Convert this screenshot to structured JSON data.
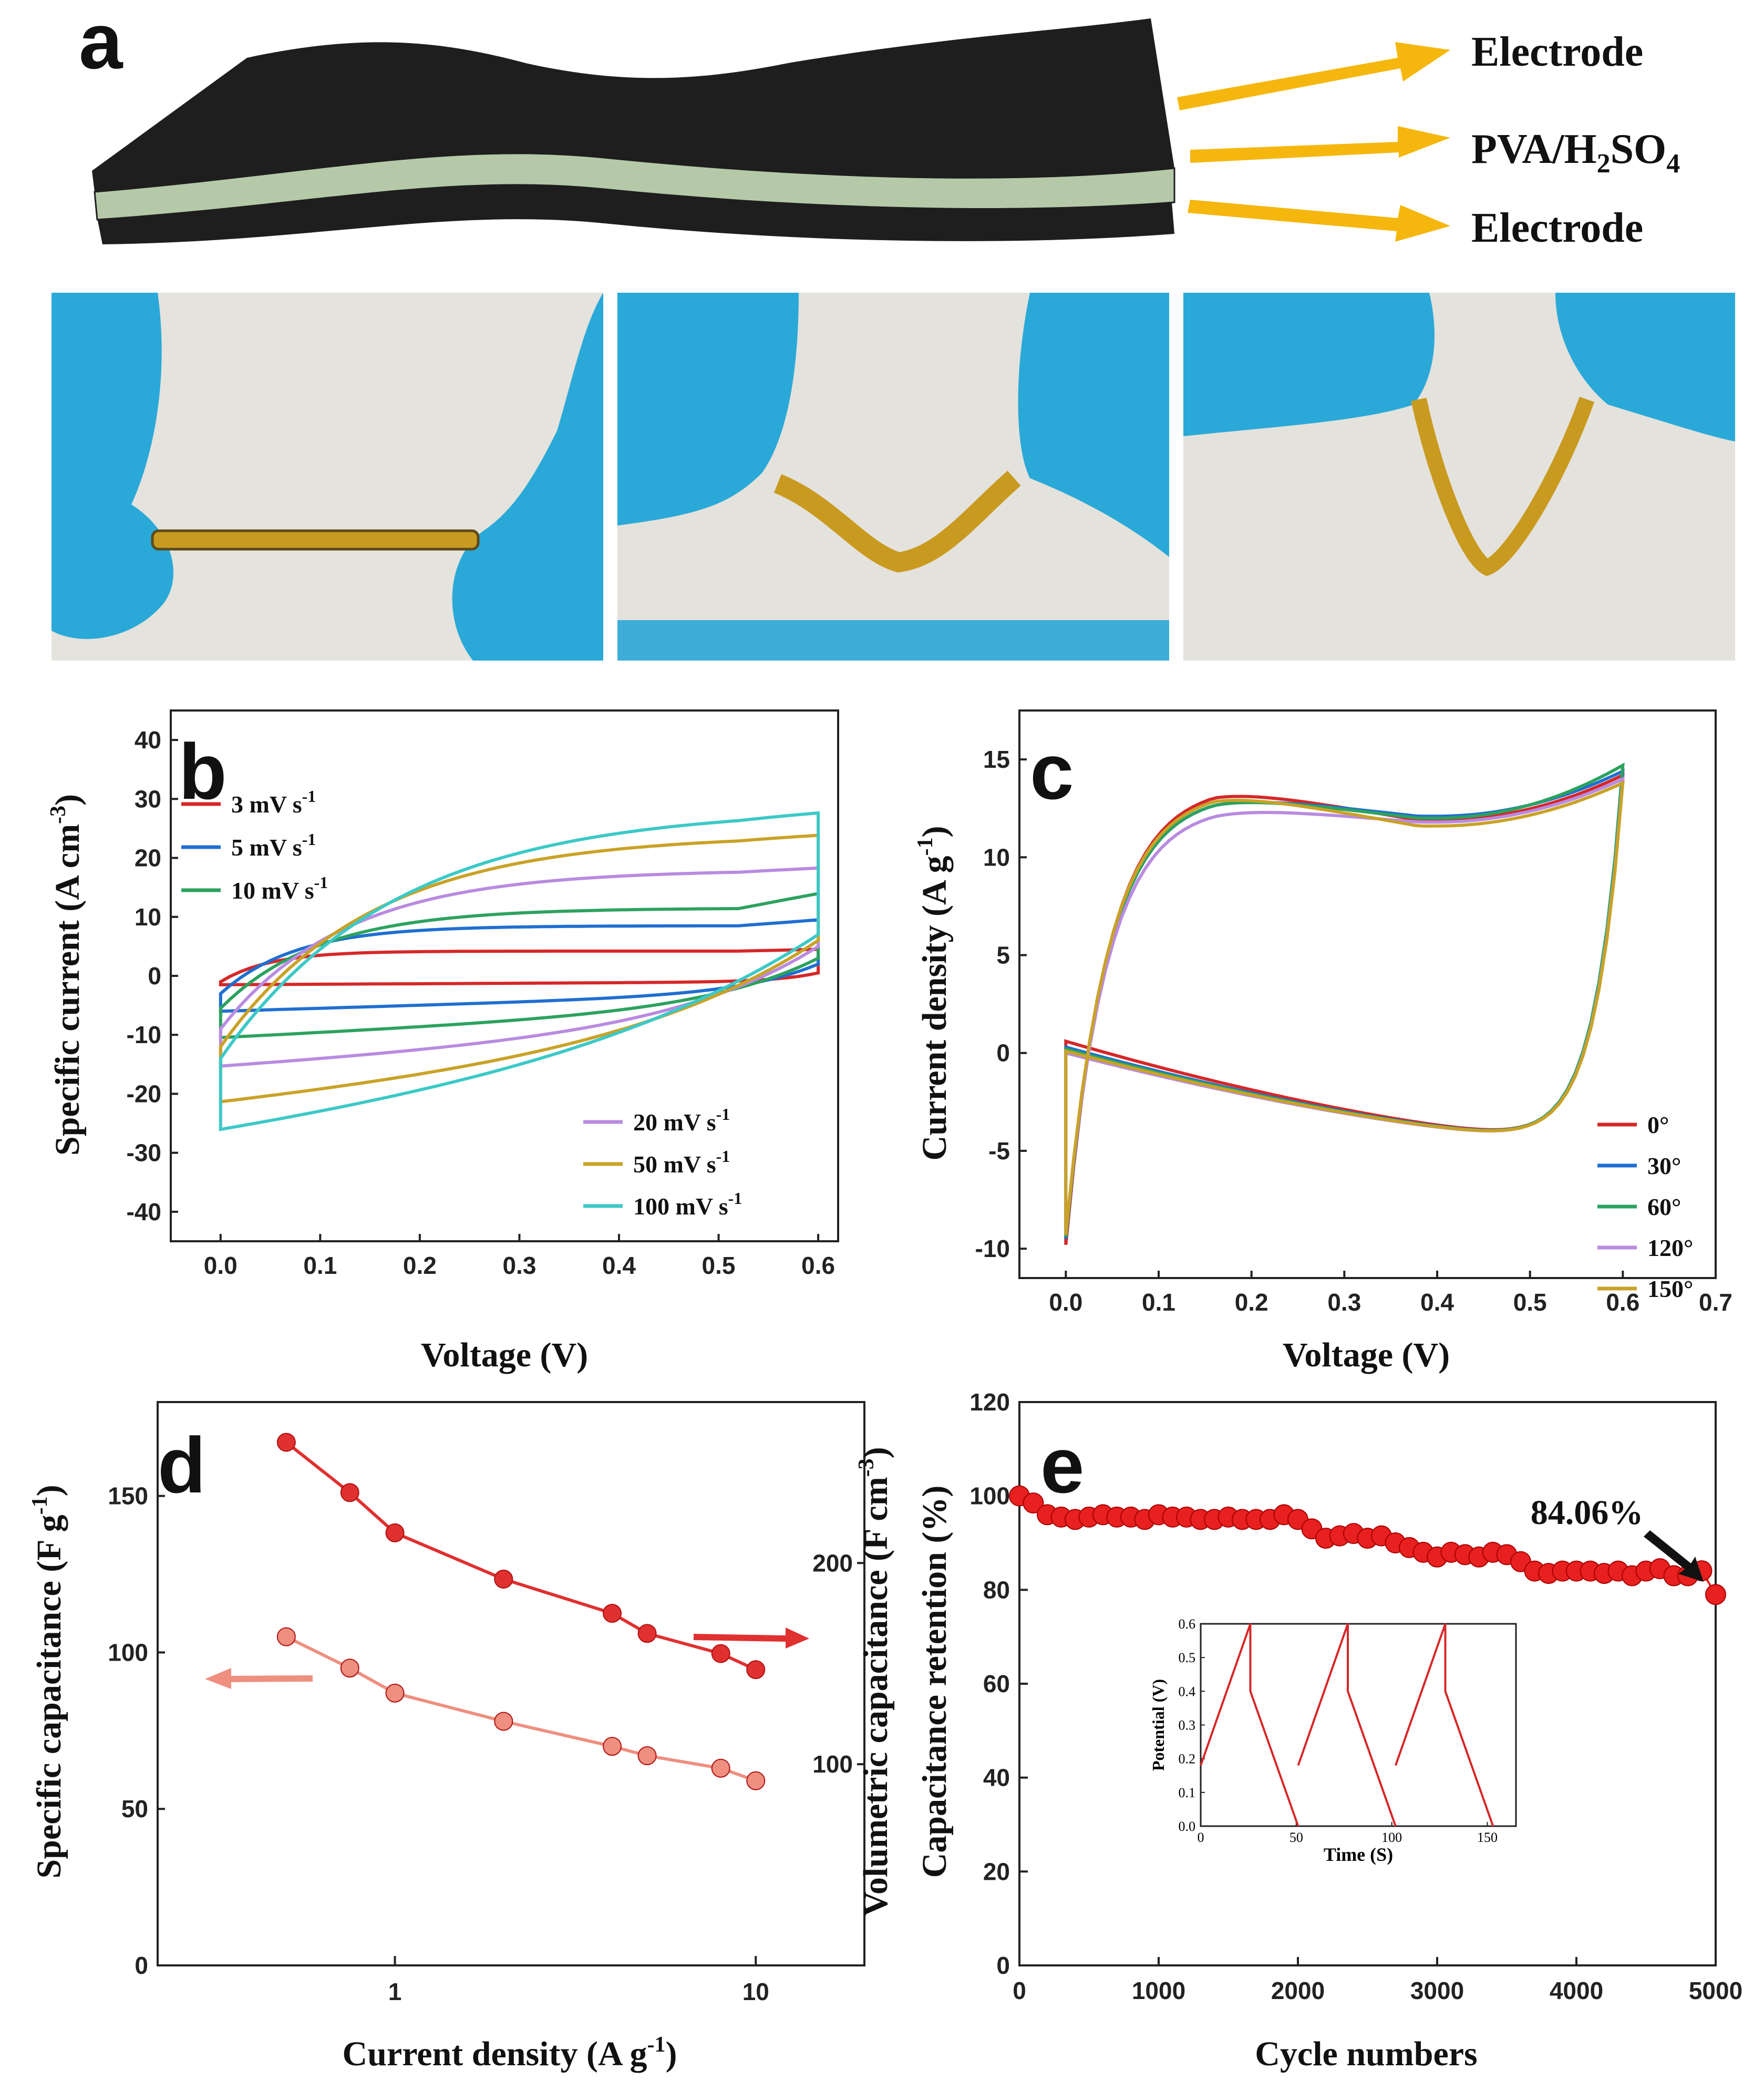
{
  "panel_a": {
    "label": "a",
    "layers": [
      "Electrode",
      "PVA/H",
      "2",
      "SO",
      "4",
      "Electrode"
    ],
    "colors": {
      "electrode": "#1e1e1e",
      "electrolyte": "#b5c9a8",
      "arrow": "#f5b70d",
      "glove": "#2aa9d8"
    }
  },
  "chart_data": [
    {
      "type": "line",
      "label": "b",
      "xlabel": "Voltage (V)",
      "ylabel": "Specific current (A cm",
      "ylabel_sup": "-3",
      "ylabel_end": ")",
      "xlim": [
        -0.05,
        0.62
      ],
      "ylim": [
        -45,
        45
      ],
      "xticks": [
        "0.0",
        "0.1",
        "0.2",
        "0.3",
        "0.4",
        "0.5",
        "0.6"
      ],
      "yticks": [
        "-40",
        "-30",
        "-20",
        "-10",
        "0",
        "10",
        "20",
        "30",
        "40"
      ],
      "unit": "mV s",
      "unit_sup": "-1",
      "series": [
        {
          "name": "3",
          "color": "#d62728",
          "vmax": 0.6,
          "peak_top": 4.5,
          "top_start": 4.2,
          "bottom_start": -1.0,
          "peak_bottom": -1.5,
          "ybottom_end": 0.5
        },
        {
          "name": "5",
          "color": "#1f6fd1",
          "vmax": 0.6,
          "peak_top": 9.5,
          "top_start": 8.5,
          "bottom_start": -3.0,
          "peak_bottom": -6.0,
          "ybottom_end": 2.0
        },
        {
          "name": "10",
          "color": "#2ca25f",
          "vmax": 0.6,
          "peak_top": 14.0,
          "top_start": 11.5,
          "bottom_start": -5.5,
          "peak_bottom": -10.5,
          "ybottom_end": 3.0
        },
        {
          "name": "20",
          "color": "#b98be0",
          "vmax": 0.6,
          "peak_top": 18.5,
          "top_start": 18.0,
          "bottom_start": -9.0,
          "peak_bottom": -15.5,
          "ybottom_end": 5.0
        },
        {
          "name": "50",
          "color": "#c9a227",
          "vmax": 0.6,
          "peak_top": 24.5,
          "top_start": 24.0,
          "bottom_start": -12.0,
          "peak_bottom": -22.0,
          "ybottom_end": 6.0
        },
        {
          "name": "100",
          "color": "#3cc9c7",
          "vmax": 0.6,
          "peak_top": 29.0,
          "top_start": 28.5,
          "bottom_start": -14.0,
          "peak_bottom": -27.5,
          "ybottom_end": 7.0
        }
      ]
    },
    {
      "type": "line",
      "label": "c",
      "xlabel": "Voltage (V)",
      "ylabel": "Current density (A g",
      "ylabel_sup": "-1",
      "ylabel_end": ")",
      "xlim": [
        -0.05,
        0.7
      ],
      "ylim": [
        -11.5,
        17.5
      ],
      "xticks": [
        "0.0",
        "0.1",
        "0.2",
        "0.3",
        "0.4",
        "0.5",
        "0.6",
        "0.7"
      ],
      "yticks": [
        "-10",
        "-5",
        "0",
        "5",
        "10",
        "15"
      ],
      "series": [
        {
          "name": "0°",
          "color": "#d62728",
          "peak": 13.7,
          "plateau": 11.9,
          "end": 14.2,
          "bottom_start": -9.8
        },
        {
          "name": "30°",
          "color": "#1f6fd1",
          "peak": 13.3,
          "plateau": 12.1,
          "end": 14.4,
          "bottom_start": -9.5
        },
        {
          "name": "60°",
          "color": "#2ca25f",
          "peak": 13.3,
          "plateau": 12.0,
          "end": 14.7,
          "bottom_start": -9.4
        },
        {
          "name": "120°",
          "color": "#b98be0",
          "peak": 12.7,
          "plateau": 11.8,
          "end": 14.0,
          "bottom_start": -9.2
        },
        {
          "name": "150°",
          "color": "#c9a227",
          "peak": 13.5,
          "plateau": 11.6,
          "end": 13.8,
          "bottom_start": -9.3
        }
      ]
    },
    {
      "type": "scatter",
      "label": "d",
      "xlabel": "Current density (A g",
      "xlabel_sup": "-1",
      "xlabel_end": ")",
      "ylabel_left": "Specific capacitance (F g",
      "ylabel_left_sup": "-1",
      "ylabel_left_end": ")",
      "ylabel_right": "Volumetric capacitance (F cm",
      "ylabel_right_sup": "-3",
      "ylabel_right_end": ")",
      "x_scale": "log",
      "xlim": [
        0.22,
        20
      ],
      "ylim_left": [
        0,
        180
      ],
      "ylim_right": [
        0,
        280
      ],
      "xticks": [
        "1",
        "10"
      ],
      "yticks_left": [
        "0",
        "50",
        "100",
        "150"
      ],
      "yticks_right": [
        "100",
        "200"
      ],
      "x": [
        0.5,
        0.75,
        1,
        2,
        4,
        5,
        8,
        10
      ],
      "series": [
        {
          "name": "Volumetric",
          "axis": "right",
          "color": "#e03030",
          "values": [
            260,
            235,
            215,
            192,
            175,
            165,
            155,
            147
          ]
        },
        {
          "name": "Specific",
          "axis": "left",
          "color": "#ee8f80",
          "values": [
            105,
            95,
            87,
            78,
            70,
            67,
            63,
            59
          ]
        }
      ]
    },
    {
      "type": "scatter",
      "label": "e",
      "xlabel": "Cycle numbers",
      "ylabel": "Capacitance retention (%)",
      "xlim": [
        0,
        5000
      ],
      "ylim": [
        0,
        120
      ],
      "xticks": [
        "0",
        "1000",
        "2000",
        "3000",
        "4000",
        "5000"
      ],
      "yticks": [
        "0",
        "20",
        "40",
        "60",
        "80",
        "100",
        "120"
      ],
      "annotation": "84.06%",
      "color": "#e82020",
      "x": [
        0,
        100,
        200,
        300,
        400,
        500,
        600,
        700,
        800,
        900,
        1000,
        1100,
        1200,
        1300,
        1400,
        1500,
        1600,
        1700,
        1800,
        1900,
        2000,
        2100,
        2200,
        2300,
        2400,
        2500,
        2600,
        2700,
        2800,
        2900,
        3000,
        3100,
        3200,
        3300,
        3400,
        3500,
        3600,
        3700,
        3800,
        3900,
        4000,
        4100,
        4200,
        4300,
        4400,
        4500,
        4600,
        4700,
        4800,
        4900,
        5000
      ],
      "values": [
        100,
        98.5,
        96,
        95.5,
        95,
        95.5,
        96,
        95.5,
        95.5,
        95,
        96,
        95.5,
        95.5,
        95,
        95,
        95.5,
        95,
        95,
        95,
        96,
        95,
        93,
        91,
        91.5,
        92,
        91,
        91.5,
        90,
        89,
        88,
        87,
        88,
        87.5,
        87,
        88,
        87.5,
        86,
        84,
        83.5,
        84,
        84,
        84,
        83.5,
        84,
        83,
        84,
        84.5,
        83,
        83,
        84.06,
        79
      ],
      "inset": {
        "xlabel": "Time (S)",
        "ylabel": "Potential (V)",
        "xlim": [
          0,
          165
        ],
        "ylim": [
          0,
          0.6
        ],
        "xticks": [
          "0",
          "50",
          "100",
          "150"
        ],
        "yticks": [
          "0.0",
          "0.1",
          "0.2",
          "0.3",
          "0.4",
          "0.5",
          "0.6"
        ],
        "cycles": [
          [
            0,
            0.18,
            26,
            0.6,
            51,
            0.0
          ],
          [
            51,
            0.18,
            77,
            0.6,
            102,
            0.0
          ],
          [
            102,
            0.18,
            128,
            0.6,
            153,
            0.0
          ]
        ]
      }
    }
  ]
}
